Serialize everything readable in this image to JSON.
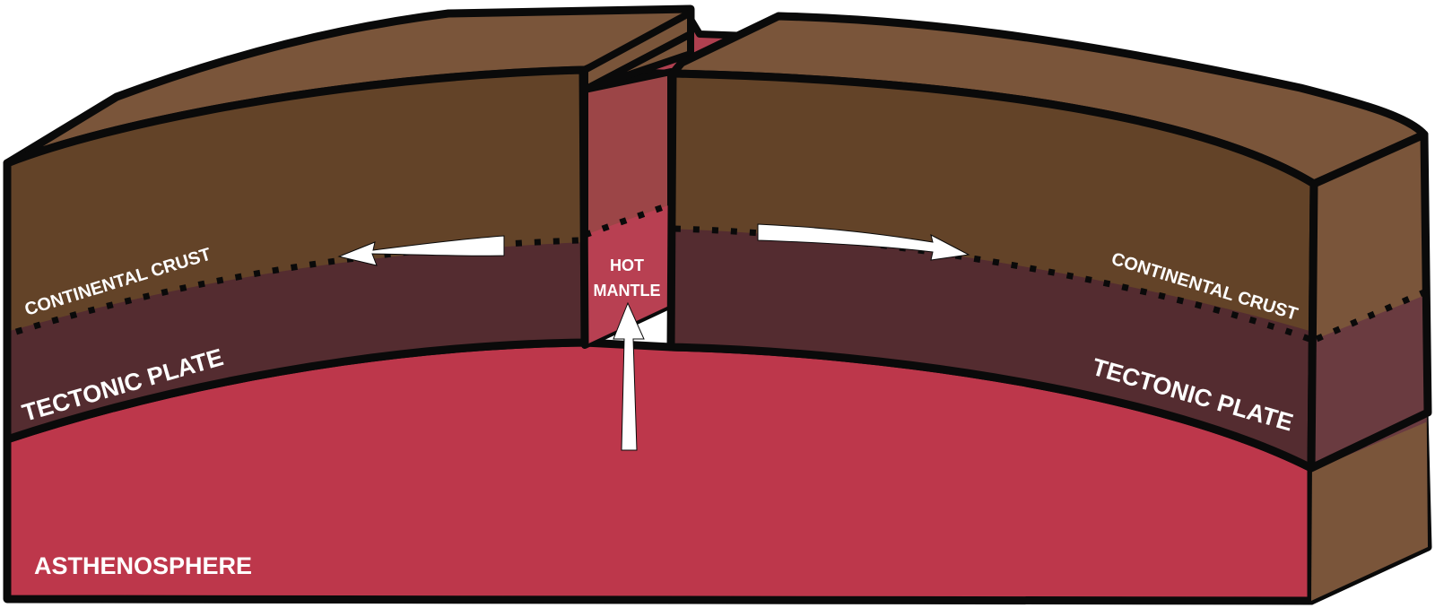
{
  "labels": {
    "crust_left": "CONTINENTAL CRUST",
    "crust_right": "CONTINENTAL CRUST",
    "plate_left": "TECTONIC PLATE",
    "plate_right": "TECTONIC PLATE",
    "mantle_line1": "HOT",
    "mantle_line2": "MANTLE",
    "asthenosphere": "ASTHENOSPHERE"
  },
  "colors": {
    "crust_top": "#7a553a",
    "crust_front": "#634328",
    "plate": "#542c30",
    "plate_side": "#6a3b40",
    "asthenosphere": "#bd374b",
    "asthenosphere_side": "#b85363",
    "mantle_gap": "#9c4547",
    "outline": "#0a0a0a",
    "arrow": "#ffffff"
  }
}
